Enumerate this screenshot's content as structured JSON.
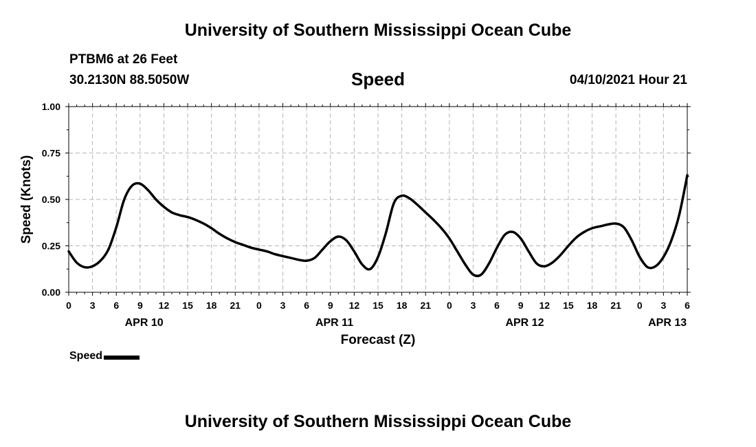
{
  "header": {
    "title_top": "University of Southern Mississippi Ocean Cube",
    "station": "PTBM6 at 26 Feet",
    "coordinates": "30.2130N  88.5050W",
    "chart_title": "Speed",
    "datetime": "04/10/2021 Hour 21"
  },
  "footer": {
    "title_bottom": "University of Southern Mississippi Ocean Cube"
  },
  "legend": {
    "label": "Speed"
  },
  "colors": {
    "line": "#000000",
    "grid": "#b4b4b4",
    "background": "#ffffff"
  },
  "chart_data": {
    "type": "line",
    "title": "Speed",
    "xlabel": "Forecast (Z)",
    "ylabel": "Speed (Knots)",
    "ylim": [
      0,
      1
    ],
    "xlim_hours": [
      0,
      78
    ],
    "grid": true,
    "y_ticks": [
      {
        "value": 0,
        "label": "0.00"
      },
      {
        "value": 0.25,
        "label": "0.25"
      },
      {
        "value": 0.5,
        "label": "0.50"
      },
      {
        "value": 0.75,
        "label": "0.75"
      },
      {
        "value": 1,
        "label": "1.00"
      }
    ],
    "x_tick_labels": [
      "0",
      "3",
      "6",
      "9",
      "12",
      "15",
      "18",
      "21",
      "0",
      "3",
      "6",
      "9",
      "12",
      "15",
      "18",
      "21",
      "0",
      "3",
      "6",
      "9",
      "12",
      "15",
      "18",
      "21",
      "0",
      "3",
      "6"
    ],
    "day_labels": [
      {
        "label": "APR 10",
        "hour": 9.5
      },
      {
        "label": "APR 11",
        "hour": 33.5
      },
      {
        "label": "APR 12",
        "hour": 57.5
      },
      {
        "label": "APR 13",
        "hour": 75.5
      }
    ],
    "series": [
      {
        "name": "Speed",
        "x": [
          0,
          1,
          2,
          3,
          4,
          5,
          6,
          7,
          8,
          9,
          10,
          11,
          12,
          13,
          14,
          15,
          16,
          17,
          18,
          19,
          20,
          21,
          22,
          23,
          24,
          25,
          26,
          27,
          28,
          29,
          30,
          31,
          32,
          33,
          34,
          35,
          36,
          37,
          38,
          39,
          40,
          41,
          42,
          43,
          44,
          45,
          46,
          47,
          48,
          49,
          50,
          51,
          52,
          53,
          54,
          55,
          56,
          57,
          58,
          59,
          60,
          61,
          62,
          63,
          64,
          65,
          66,
          67,
          68,
          69,
          70,
          71,
          72,
          73,
          74,
          75,
          76,
          77,
          78
        ],
        "values": [
          0.22,
          0.16,
          0.135,
          0.14,
          0.17,
          0.23,
          0.35,
          0.5,
          0.575,
          0.585,
          0.55,
          0.5,
          0.46,
          0.43,
          0.415,
          0.405,
          0.39,
          0.37,
          0.345,
          0.315,
          0.29,
          0.27,
          0.255,
          0.24,
          0.23,
          0.22,
          0.205,
          0.195,
          0.185,
          0.175,
          0.17,
          0.185,
          0.23,
          0.275,
          0.3,
          0.28,
          0.22,
          0.15,
          0.125,
          0.19,
          0.32,
          0.48,
          0.52,
          0.505,
          0.47,
          0.43,
          0.39,
          0.345,
          0.29,
          0.22,
          0.15,
          0.095,
          0.095,
          0.155,
          0.24,
          0.31,
          0.325,
          0.29,
          0.22,
          0.155,
          0.14,
          0.16,
          0.2,
          0.25,
          0.295,
          0.325,
          0.345,
          0.355,
          0.365,
          0.37,
          0.35,
          0.28,
          0.19,
          0.135,
          0.14,
          0.19,
          0.28,
          0.42,
          0.63
        ]
      }
    ]
  }
}
